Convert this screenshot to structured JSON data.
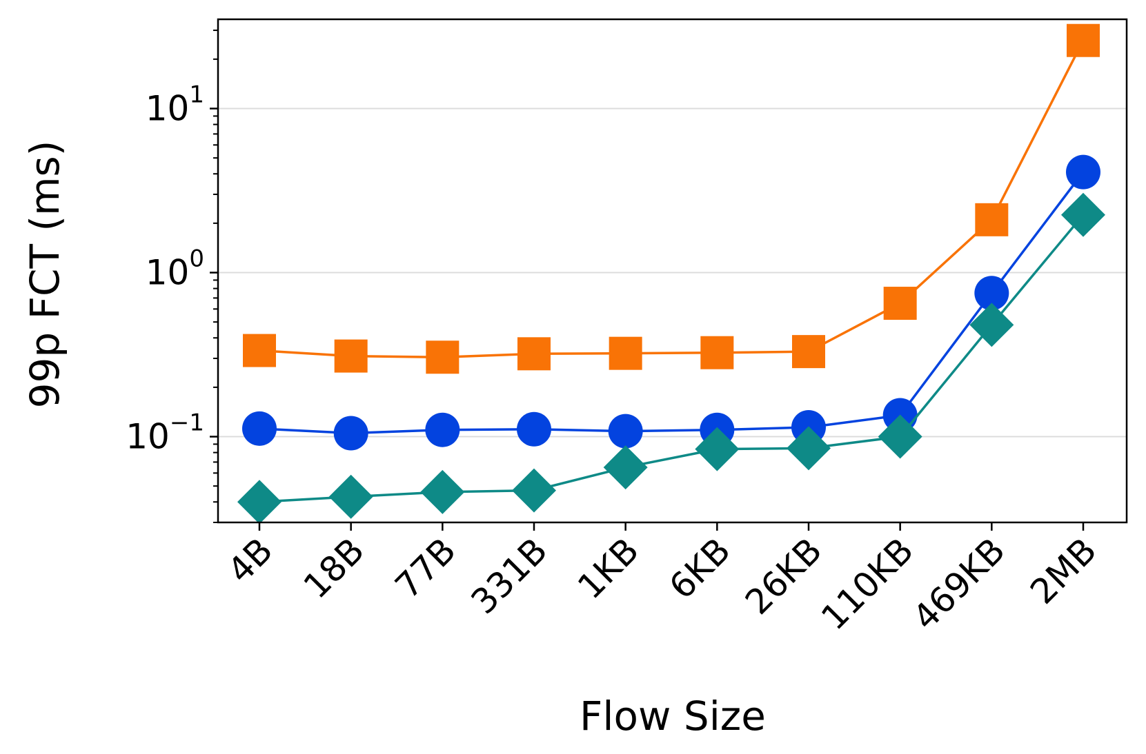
{
  "chart_data": {
    "type": "line",
    "xlabel": "Flow Size",
    "ylabel": "99p FCT (ms)",
    "y_scale": "log",
    "ylim": [
      0.03,
      35
    ],
    "y_major_ticks": [
      {
        "value": 0.1,
        "base": "10",
        "exp": "−1"
      },
      {
        "value": 1,
        "base": "10",
        "exp": "0"
      },
      {
        "value": 10,
        "base": "10",
        "exp": "1"
      }
    ],
    "grid": "horizontal-major",
    "categories": [
      "4B",
      "18B",
      "77B",
      "331B",
      "1KB",
      "6KB",
      "26KB",
      "110KB",
      "469KB",
      "2MB"
    ],
    "series": [
      {
        "color": "#f97306",
        "marker": "square",
        "values": [
          0.335,
          0.31,
          0.305,
          0.32,
          0.322,
          0.325,
          0.33,
          0.65,
          2.1,
          26
        ]
      },
      {
        "color": "#0343df",
        "marker": "circle",
        "values": [
          0.112,
          0.105,
          0.11,
          0.111,
          0.108,
          0.11,
          0.114,
          0.135,
          0.75,
          4.1
        ]
      },
      {
        "color": "#0e8a87",
        "marker": "diamond",
        "values": [
          0.04,
          0.043,
          0.046,
          0.047,
          0.065,
          0.084,
          0.085,
          0.1,
          0.48,
          2.25
        ]
      }
    ]
  }
}
